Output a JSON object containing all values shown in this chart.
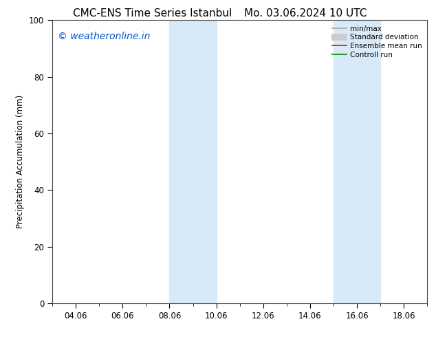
{
  "title_left": "CMC-ENS Time Series Istanbul",
  "title_right": "Mo. 03.06.2024 10 UTC",
  "ylabel": "Precipitation Accumulation (mm)",
  "ylim": [
    0,
    100
  ],
  "yticks": [
    0,
    20,
    40,
    60,
    80,
    100
  ],
  "x_tick_labels": [
    "04.06",
    "06.06",
    "08.06",
    "10.06",
    "12.06",
    "14.06",
    "16.06",
    "18.06"
  ],
  "x_tick_positions": [
    4,
    6,
    8,
    10,
    12,
    14,
    16,
    18
  ],
  "xlim": [
    3.0,
    19.0
  ],
  "watermark": "© weatheronline.in",
  "watermark_color": "#0055cc",
  "background_color": "#ffffff",
  "plot_bg_color": "#ffffff",
  "shaded_regions": [
    {
      "x_start": 8.0,
      "x_end": 10.0,
      "color": "#d8eaf8"
    },
    {
      "x_start": 15.0,
      "x_end": 17.0,
      "color": "#d8eaf8"
    }
  ],
  "legend_items": [
    {
      "label": "min/max",
      "color": "#aaaaaa",
      "linewidth": 1.2
    },
    {
      "label": "Standard deviation",
      "color": "#cccccc",
      "linewidth": 7
    },
    {
      "label": "Ensemble mean run",
      "color": "#ff0000",
      "linewidth": 1.2
    },
    {
      "label": "Controll run",
      "color": "#008800",
      "linewidth": 1.2
    }
  ],
  "title_fontsize": 11,
  "legend_fontsize": 7.5,
  "axis_fontsize": 8.5,
  "watermark_fontsize": 10
}
